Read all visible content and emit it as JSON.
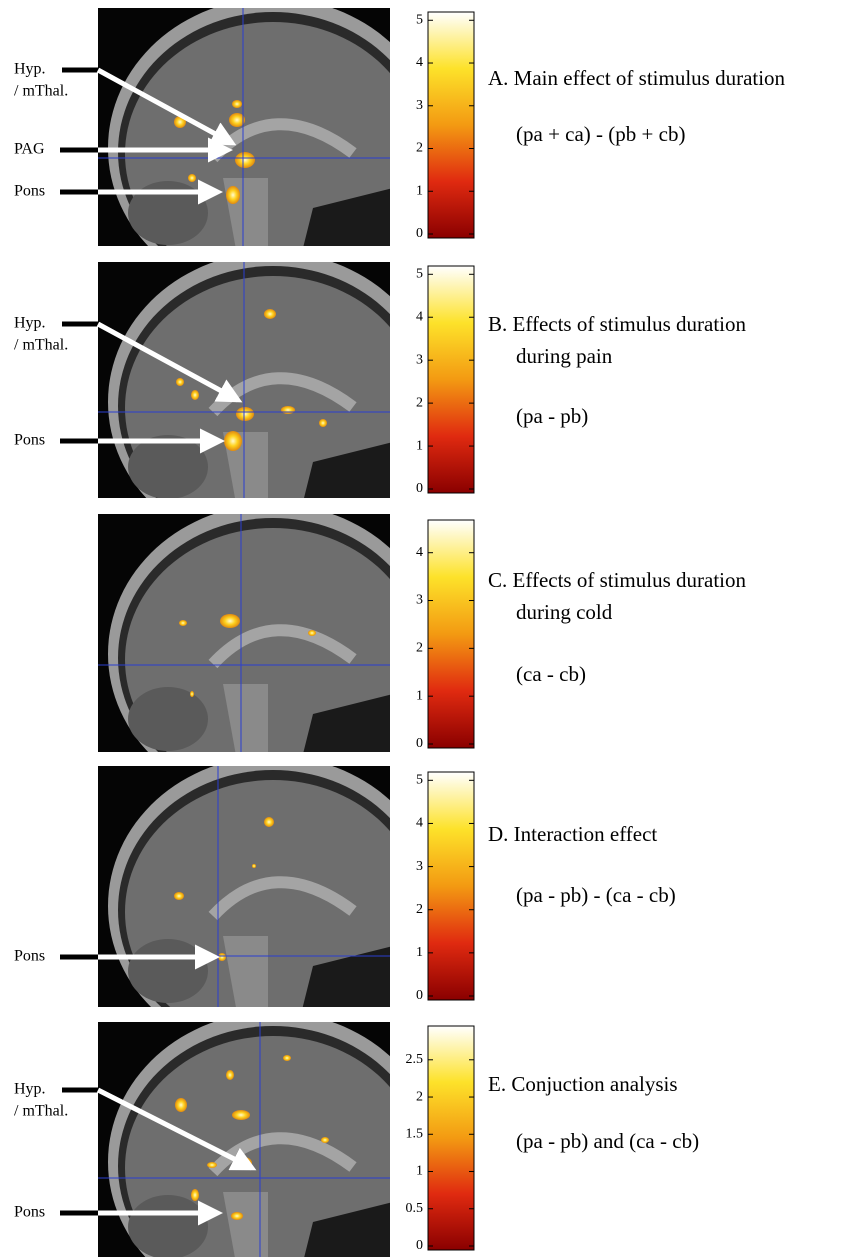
{
  "panels": [
    {
      "title_lines": [
        "A. Main effect of stimulus duration"
      ],
      "formula": "(pa + ca) - (pb + cb)",
      "annotations": [
        [
          "Hyp.",
          "/ mThal."
        ],
        [
          "PAG"
        ],
        [
          "Pons"
        ]
      ],
      "colorbar": {
        "lim": [
          0,
          5.1
        ],
        "ticks": [
          0,
          1,
          2,
          3,
          4,
          5
        ]
      }
    },
    {
      "title_lines": [
        "B. Effects of stimulus duration",
        "during pain"
      ],
      "formula": "(pa - pb)",
      "annotations": [
        [
          "Hyp.",
          "/ mThal."
        ],
        [
          "Pons"
        ]
      ],
      "colorbar": {
        "lim": [
          0,
          5.1
        ],
        "ticks": [
          0,
          1,
          2,
          3,
          4,
          5
        ]
      }
    },
    {
      "title_lines": [
        "C. Effects of stimulus duration",
        "during cold"
      ],
      "formula": "(ca - cb)",
      "annotations": [],
      "colorbar": {
        "lim": [
          0,
          4.6
        ],
        "ticks": [
          0,
          1,
          2,
          3,
          4
        ]
      }
    },
    {
      "title_lines": [
        "D. Interaction effect"
      ],
      "formula": "(pa - pb) - (ca - cb)",
      "annotations": [
        [
          "Pons"
        ]
      ],
      "colorbar": {
        "lim": [
          0,
          5.1
        ],
        "ticks": [
          0,
          1,
          2,
          3,
          4,
          5
        ]
      }
    },
    {
      "title_lines": [
        "E. Conjuction analysis"
      ],
      "formula": "(pa - pb) and (ca - cb)",
      "annotations": [
        [
          "Hyp.",
          "/ mThal."
        ],
        [
          "Pons"
        ]
      ],
      "colorbar": {
        "lim": [
          0,
          2.9
        ],
        "ticks": [
          0,
          0.5,
          1,
          1.5,
          2,
          2.5
        ]
      }
    }
  ]
}
